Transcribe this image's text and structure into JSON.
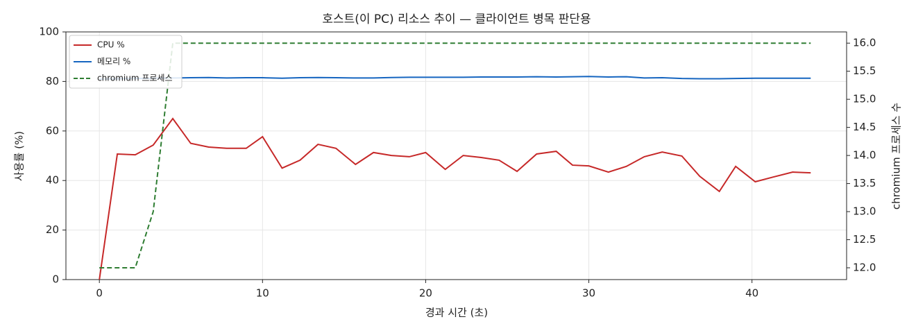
{
  "chart_data": {
    "type": "line",
    "title": "호스트(이 PC) 리소스 추이 — 클라이언트 병목 판단용",
    "xlabel": "경과 시간 (초)",
    "ylabel": "사용률 (%)",
    "y2label": "chromium 프로세스 수",
    "x": [
      0,
      1.1,
      2.2,
      3.3,
      4.5,
      5.6,
      6.7,
      7.8,
      9.0,
      10.0,
      11.2,
      12.3,
      13.4,
      14.5,
      15.7,
      16.8,
      17.9,
      19.0,
      20.0,
      21.2,
      22.3,
      23.4,
      24.5,
      25.6,
      26.8,
      28.0,
      29.0,
      30.0,
      31.2,
      32.3,
      33.4,
      34.5,
      35.7,
      36.8,
      38.0,
      39.0,
      40.2,
      41.3,
      42.5,
      43.6
    ],
    "series": [
      {
        "name": "CPU %",
        "color": "#c62828",
        "linestyle": "solid",
        "values": [
          0,
          50.7,
          50.4,
          54.3,
          65,
          55,
          53.5,
          53,
          53,
          57.7,
          45,
          48.2,
          54.6,
          53,
          46.5,
          51.3,
          50.1,
          49.6,
          51.3,
          44.5,
          50.1,
          49.3,
          48.2,
          43.7,
          50.7,
          51.8,
          46.2,
          45.9,
          43.4,
          45.7,
          49.6,
          51.5,
          49.9,
          41.7,
          35.6,
          45.7,
          39.5,
          41.4,
          43.4,
          43.1
        ]
      },
      {
        "name": "메모리 %",
        "color": "#1565c0",
        "linestyle": "solid",
        "values": [
          81.0,
          81.1,
          81.2,
          81.3,
          81.4,
          81.5,
          81.6,
          81.4,
          81.5,
          81.5,
          81.3,
          81.5,
          81.6,
          81.5,
          81.4,
          81.4,
          81.6,
          81.7,
          81.7,
          81.7,
          81.7,
          81.8,
          81.8,
          81.8,
          81.9,
          81.8,
          81.9,
          82.0,
          81.8,
          81.9,
          81.4,
          81.5,
          81.2,
          81.1,
          81.1,
          81.2,
          81.3,
          81.3,
          81.3,
          81.3
        ]
      },
      {
        "name": "chromium 프로세스",
        "color": "#2e7d32",
        "linestyle": "dashed",
        "axis": "y2",
        "values": [
          12,
          12,
          12,
          13,
          16,
          16,
          16,
          16,
          16,
          16,
          16,
          16,
          16,
          16,
          16,
          16,
          16,
          16,
          16,
          16,
          16,
          16,
          16,
          16,
          16,
          16,
          16,
          16,
          16,
          16,
          16,
          16,
          16,
          16,
          16,
          16,
          16,
          16,
          16,
          16
        ]
      }
    ],
    "xlim": [
      -2.05,
      45.8
    ],
    "xticks": [
      0,
      10,
      20,
      30,
      40
    ],
    "ylim": [
      0,
      100
    ],
    "yticks": [
      0,
      20,
      40,
      60,
      80,
      100
    ],
    "y2lim": [
      11.79,
      16.2
    ],
    "y2ticks": [
      {
        "value": 12,
        "label": "12.0"
      },
      12.5,
      {
        "value": 13,
        "label": "13.0"
      },
      13.5,
      {
        "value": 14,
        "label": "14.0"
      },
      14.5,
      {
        "value": 15,
        "label": "15.0"
      },
      15.5,
      {
        "value": 16,
        "label": "16.0"
      }
    ],
    "grid": true,
    "legend": "upper left"
  }
}
